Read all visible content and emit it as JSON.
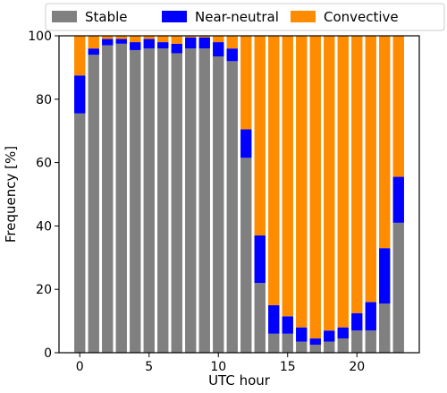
{
  "chart_data": {
    "type": "bar",
    "stacked": true,
    "title": "",
    "xlabel": "UTC hour",
    "ylabel": "Frequency [%]",
    "xlim": [
      -1.5,
      24.5
    ],
    "ylim": [
      0,
      100
    ],
    "xticks": [
      0,
      5,
      10,
      15,
      20
    ],
    "yticks": [
      0,
      20,
      40,
      60,
      80,
      100
    ],
    "grid": false,
    "legend_position": "top",
    "x": [
      0,
      1,
      2,
      3,
      4,
      5,
      6,
      7,
      8,
      9,
      10,
      11,
      12,
      13,
      14,
      15,
      16,
      17,
      18,
      19,
      20,
      21,
      22,
      23
    ],
    "series": [
      {
        "name": "Stable",
        "color": "#808080",
        "values": [
          75.5,
          94.0,
          97.0,
          97.5,
          95.5,
          96.0,
          96.0,
          94.5,
          96.0,
          96.0,
          93.5,
          92.0,
          61.5,
          22.0,
          6.0,
          6.0,
          3.5,
          2.5,
          3.5,
          4.5,
          7.0,
          7.0,
          15.5,
          41.0
        ]
      },
      {
        "name": "Near-neutral",
        "color": "#0000ff",
        "values": [
          12.0,
          2.0,
          2.0,
          1.5,
          2.5,
          3.0,
          2.0,
          3.0,
          3.5,
          3.5,
          4.5,
          4.0,
          9.0,
          15.0,
          9.0,
          5.5,
          4.5,
          2.0,
          3.5,
          3.5,
          5.5,
          9.0,
          17.5,
          14.5
        ]
      },
      {
        "name": "Convective",
        "color": "#ff8c00",
        "values": [
          12.5,
          4.0,
          1.0,
          1.0,
          2.0,
          1.0,
          2.0,
          2.5,
          0.5,
          0.5,
          2.0,
          4.0,
          29.5,
          63.0,
          85.0,
          88.5,
          92.0,
          95.5,
          93.0,
          92.0,
          87.5,
          84.0,
          67.0,
          44.5
        ]
      }
    ]
  }
}
